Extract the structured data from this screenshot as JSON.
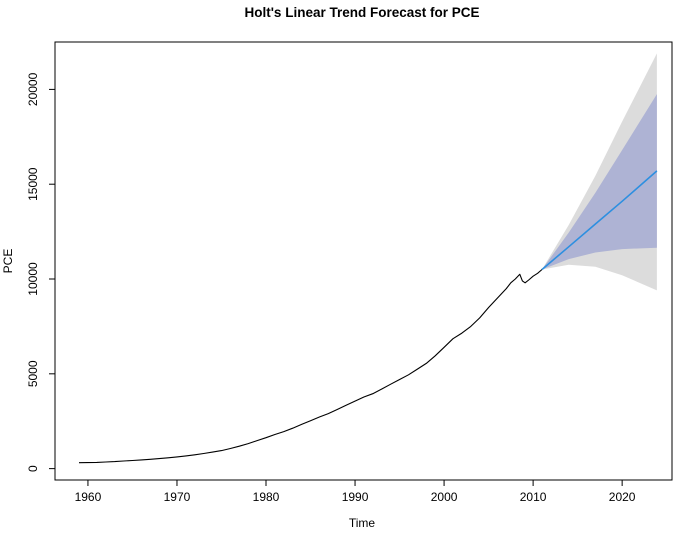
{
  "chart_data": {
    "type": "line",
    "title": "Holt's Linear Trend Forecast for PCE",
    "xlabel": "Time",
    "ylabel": "PCE",
    "xlim": [
      1956.3,
      2025.6
    ],
    "ylim": [
      -600,
      22500
    ],
    "xticks": [
      1960,
      1970,
      1980,
      1990,
      2000,
      2010,
      2020
    ],
    "yticks": [
      0,
      5000,
      10000,
      15000,
      20000
    ],
    "grid": false,
    "legend": "none",
    "colors": {
      "history": "#000000",
      "forecast": "#2D8FE0",
      "interval_80": "#AEB3D4",
      "interval_95": "#DCDCDC"
    },
    "series": [
      {
        "role": "observed",
        "x": [
          1959,
          1960,
          1961,
          1962,
          1963,
          1964,
          1965,
          1966,
          1967,
          1968,
          1969,
          1970,
          1971,
          1972,
          1973,
          1974,
          1975,
          1976,
          1977,
          1978,
          1979,
          1980,
          1981,
          1982,
          1983,
          1984,
          1985,
          1986,
          1987,
          1988,
          1989,
          1990,
          1991,
          1992,
          1993,
          1994,
          1995,
          1996,
          1997,
          1998,
          1999,
          2000,
          2001,
          2002,
          2003,
          2004,
          2005,
          2006,
          2007,
          2007.5,
          2008,
          2008.5,
          2008.8,
          2009.1,
          2009.5,
          2010,
          2010.5,
          2011
        ],
        "y": [
          310,
          320,
          330,
          350,
          370,
          400,
          430,
          460,
          490,
          530,
          570,
          620,
          670,
          730,
          800,
          870,
          950,
          1060,
          1180,
          1320,
          1480,
          1630,
          1800,
          1950,
          2130,
          2330,
          2530,
          2720,
          2900,
          3120,
          3340,
          3560,
          3780,
          3950,
          4200,
          4450,
          4700,
          4950,
          5250,
          5550,
          5950,
          6400,
          6850,
          7150,
          7500,
          7950,
          8500,
          9000,
          9500,
          9800,
          10000,
          10250,
          9900,
          9800,
          9950,
          10150,
          10300,
          10500
        ]
      },
      {
        "role": "forecast",
        "x": [
          2011,
          2014,
          2017,
          2020,
          2023.9
        ],
        "y": [
          10500,
          11700,
          12900,
          14100,
          15700
        ]
      },
      {
        "role": "interval_80",
        "x": [
          2011,
          2014,
          2017,
          2020,
          2023.9
        ],
        "lower": [
          10500,
          11050,
          11400,
          11580,
          11650
        ],
        "upper": [
          10500,
          12450,
          14550,
          16800,
          19750
        ]
      },
      {
        "role": "interval_95",
        "x": [
          2011,
          2014,
          2017,
          2020,
          2023.9
        ],
        "lower": [
          10500,
          10750,
          10650,
          10200,
          9400
        ],
        "upper": [
          10500,
          12850,
          15450,
          18300,
          21900
        ]
      }
    ]
  }
}
